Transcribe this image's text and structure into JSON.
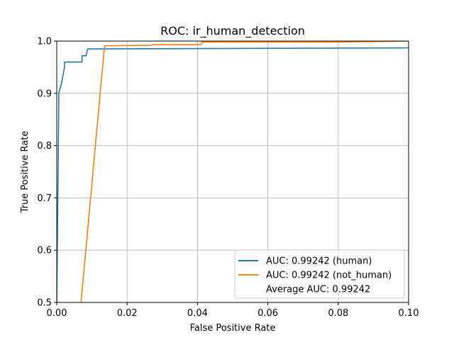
{
  "chart_data": {
    "type": "line",
    "title": "ROC: ir_human_detection",
    "xlabel": "False Positive Rate",
    "ylabel": "True Positive Rate",
    "xlim": [
      0,
      0.1
    ],
    "ylim": [
      0.5,
      1.0
    ],
    "grid": true,
    "legend_position": "lower-right",
    "x_ticks": [
      0,
      0.02,
      0.04,
      0.06,
      0.08,
      0.1
    ],
    "x_tick_labels": [
      "0.00",
      "0.02",
      "0.04",
      "0.06",
      "0.08",
      "0.10"
    ],
    "y_ticks": [
      0.5,
      0.6,
      0.7,
      0.8,
      0.9,
      1.0
    ],
    "y_tick_labels": [
      "0.5",
      "0.6",
      "0.7",
      "0.8",
      "0.9",
      "1.0"
    ],
    "series": [
      {
        "name": "AUC: 0.99242 (human)",
        "color": "#1f77b4",
        "x": [
          0,
          0.0003,
          0.0006,
          0.0006,
          0.0012,
          0.0018,
          0.0022,
          0.0022,
          0.0072,
          0.0072,
          0.0083,
          0.0088,
          0.0098,
          0.1
        ],
        "y": [
          0.5,
          0.7,
          0.9,
          0.902,
          0.915,
          0.935,
          0.95,
          0.96,
          0.96,
          0.972,
          0.972,
          0.985,
          0.985,
          0.987
        ]
      },
      {
        "name": "AUC: 0.99242 (not_human)",
        "color": "#ff7f0e",
        "x": [
          0.0069,
          0.0135,
          0.0137,
          0.027,
          0.0272,
          0.041,
          0.0412,
          0.08,
          0.1
        ],
        "y": [
          0.5,
          0.985,
          0.991,
          0.992,
          0.993,
          0.993,
          0.998,
          0.998,
          1.0
        ]
      }
    ],
    "legend_extra": "Average AUC: 0.99242"
  }
}
